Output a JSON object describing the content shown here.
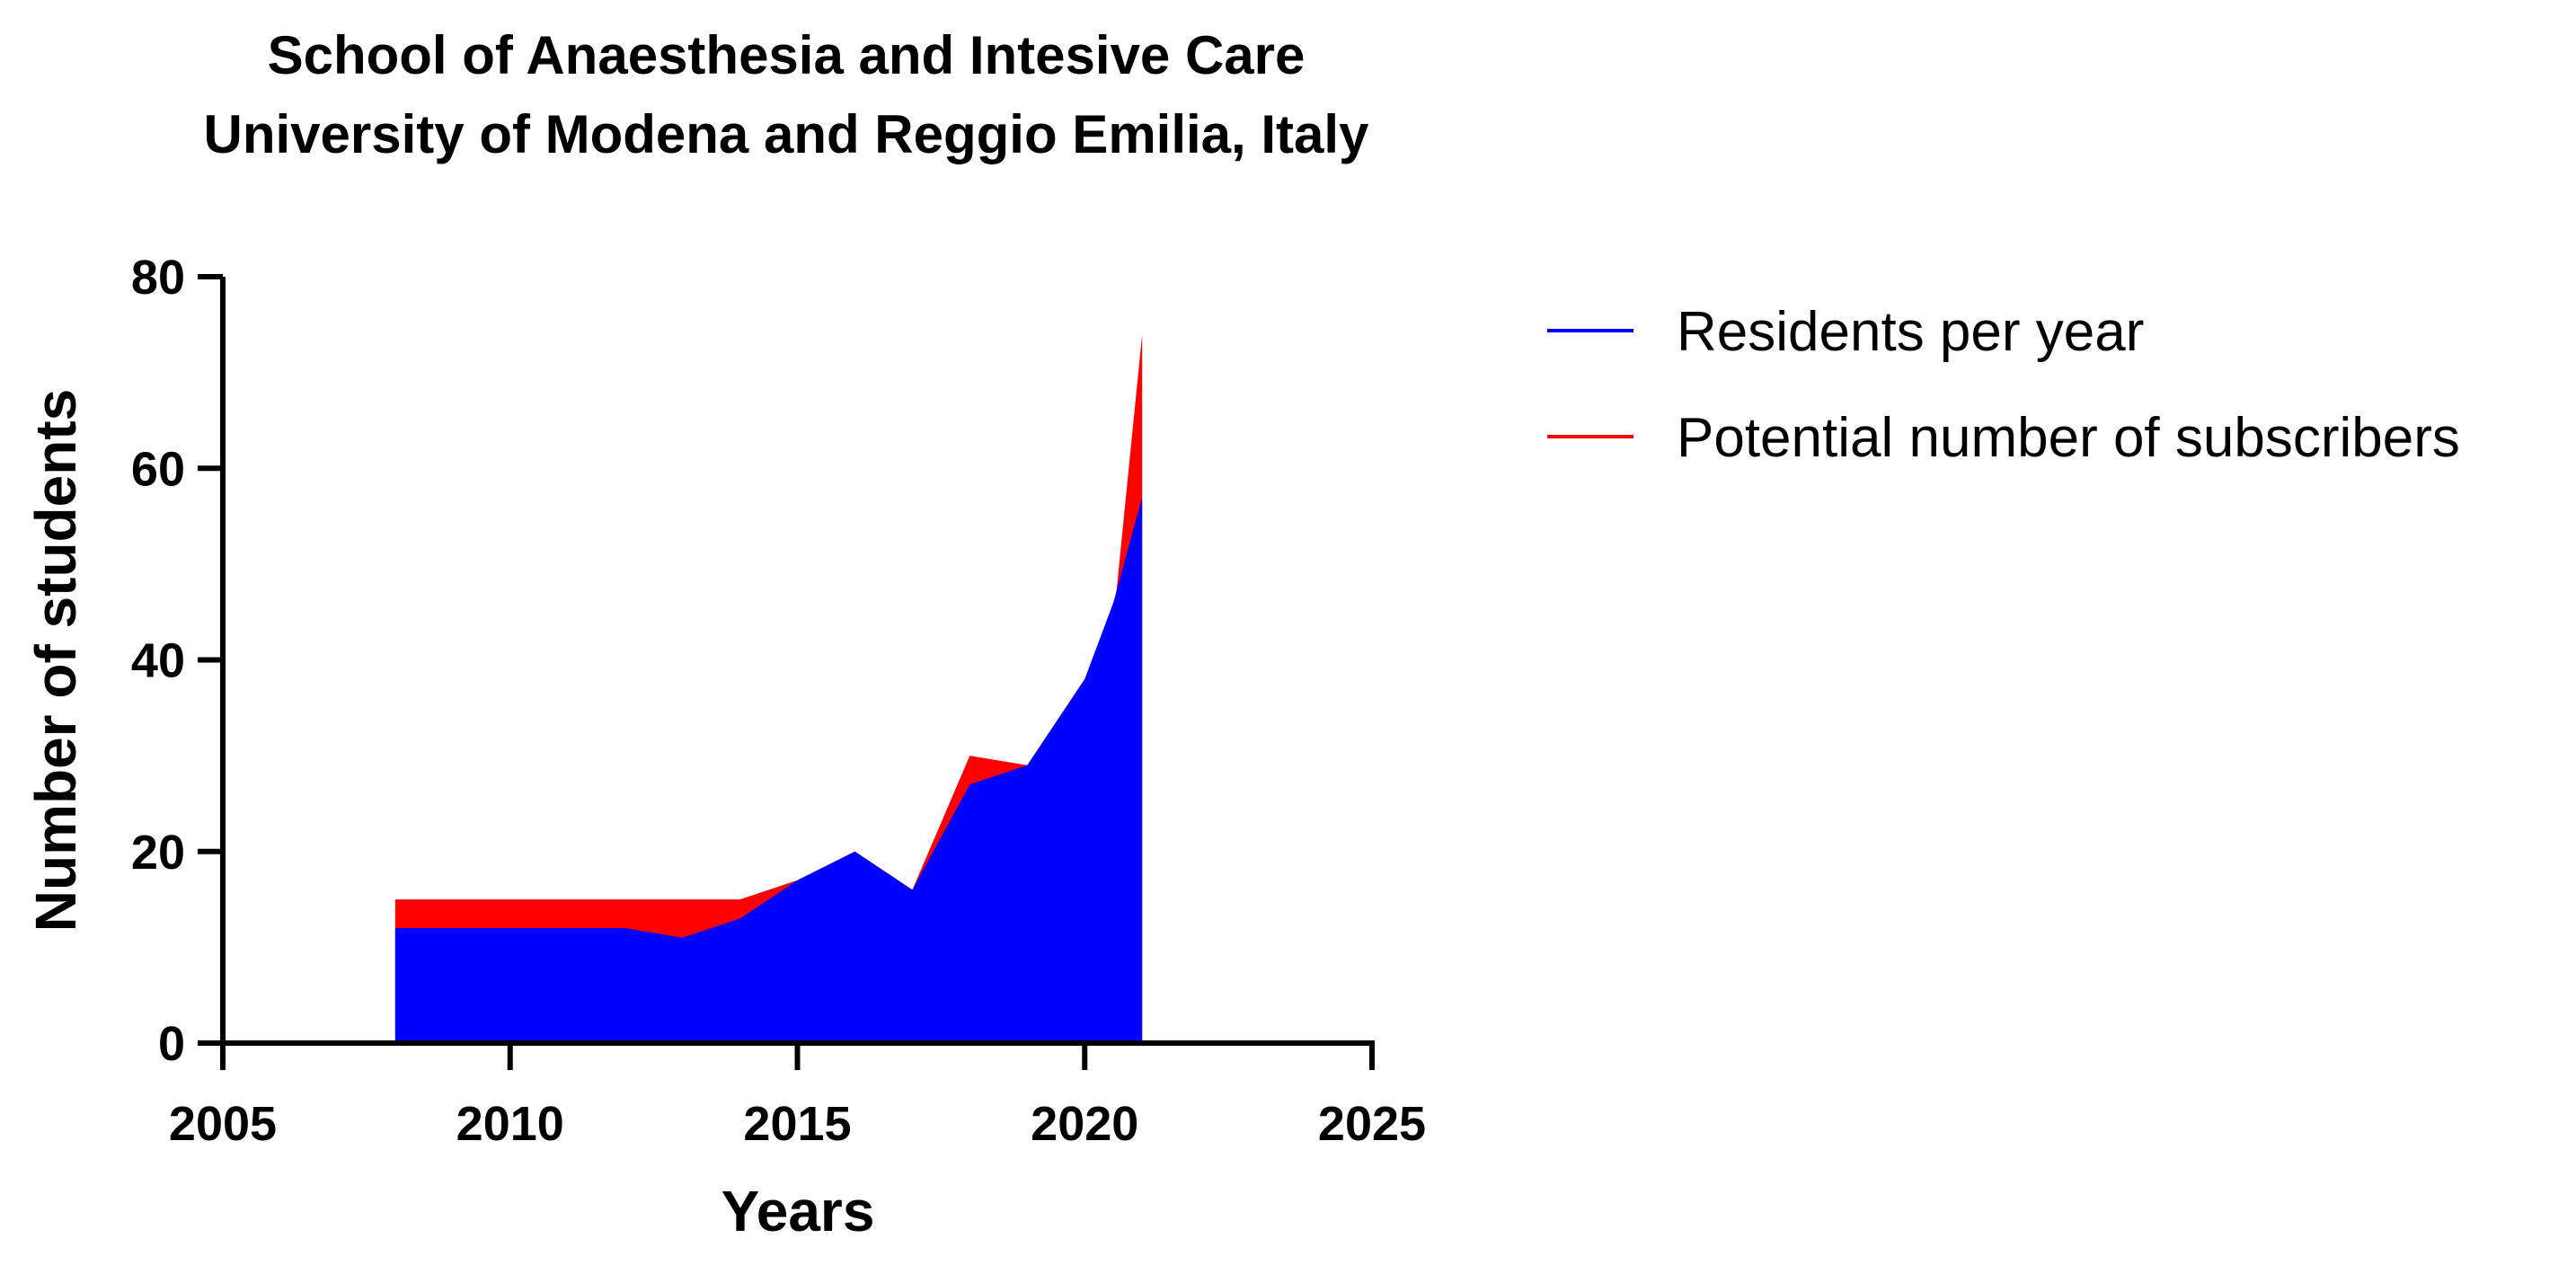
{
  "chart_data": {
    "type": "area",
    "title": "School of Anaesthesia and Intesive Care",
    "subtitle": "University of Modena and Reggio Emilia, Italy",
    "xlabel": "Years",
    "ylabel": "Number of students",
    "xlim": [
      2005,
      2025
    ],
    "ylim": [
      0,
      80
    ],
    "x_ticks": [
      "2005",
      "2010",
      "2015",
      "2020",
      "2025"
    ],
    "y_ticks": [
      "0",
      "20",
      "40",
      "60",
      "80"
    ],
    "grid": false,
    "legend_position": "right",
    "series": [
      {
        "name": "Potential number of subscribers",
        "color": "#ff0000",
        "x": [
          2008,
          2009,
          2010,
          2011,
          2012,
          2013,
          2014,
          2015,
          2016,
          2017,
          2018,
          2019,
          2020,
          2020.5,
          2021
        ],
        "values": [
          15,
          15,
          15,
          15,
          15,
          15,
          15,
          17,
          20,
          16,
          30,
          29,
          38,
          44,
          74
        ]
      },
      {
        "name": "Residents per year",
        "color": "#0000ff",
        "x": [
          2008,
          2009,
          2010,
          2011,
          2012,
          2013,
          2014,
          2015,
          2016,
          2017,
          2018,
          2019,
          2020,
          2020.5,
          2021
        ],
        "values": [
          12,
          12,
          12,
          12,
          12,
          11,
          13,
          17,
          20,
          16,
          27,
          29,
          38,
          46,
          57
        ]
      }
    ],
    "legend": [
      {
        "name": "Residents per year",
        "color": "#0000ff"
      },
      {
        "name": "Potential number of subscribers",
        "color": "#ff0000"
      }
    ]
  }
}
